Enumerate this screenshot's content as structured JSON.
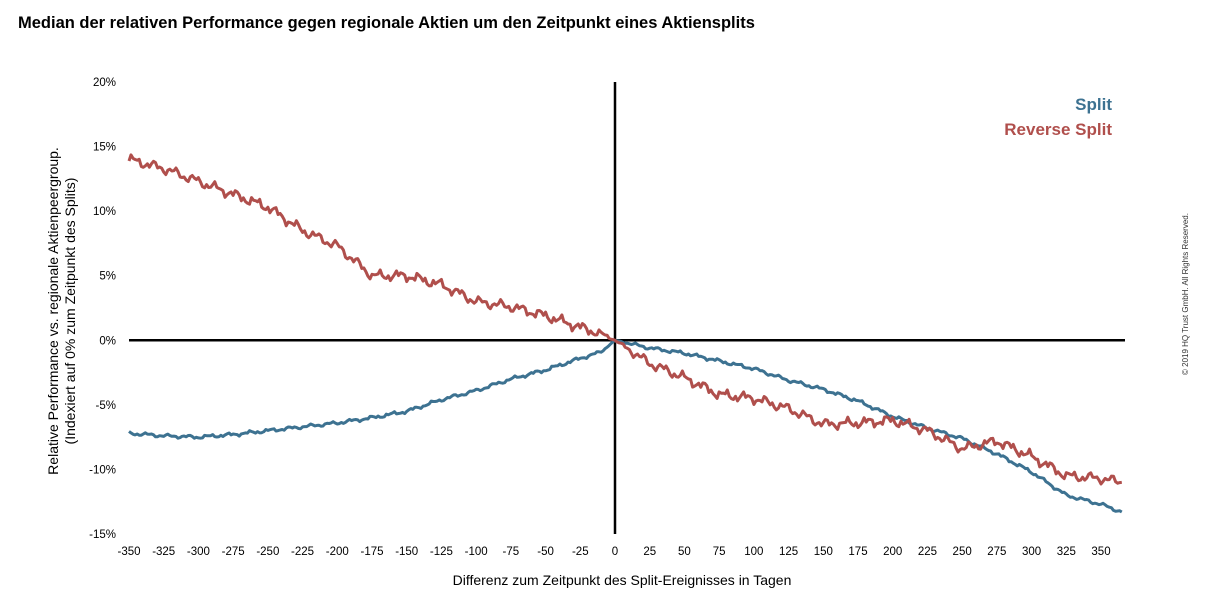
{
  "chart_data": {
    "type": "line",
    "title": "Median der relativen Performance gegen regionale Aktien um den Zeitpunkt eines Aktiensplits",
    "xlabel": "Differenz zum Zeitpunkt des Split-Ereignisses in Tagen",
    "ylabel": [
      "Relative Performance vs. regionale Aktienpeergroup.",
      "(Indexiert auf 0% zum Zeitpunkt des Splits)"
    ],
    "xlim": [
      -350,
      365
    ],
    "ylim": [
      -15,
      20
    ],
    "x_ticks": [
      "-350",
      "-325",
      "-300",
      "-275",
      "-250",
      "-225",
      "-200",
      "-175",
      "-150",
      "-125",
      "-100",
      "-75",
      "-50",
      "-25",
      "0",
      "25",
      "50",
      "75",
      "100",
      "125",
      "150",
      "175",
      "200",
      "225",
      "250",
      "275",
      "300",
      "325",
      "350"
    ],
    "y_ticks": [
      "20%",
      "15%",
      "10%",
      "5%",
      "0%",
      "-5%",
      "-10%",
      "-15%"
    ],
    "grid": false,
    "legend": "top-right",
    "series": [
      {
        "name": "Split",
        "color": "#3d7291",
        "points": [
          [
            -350,
            -7.2
          ],
          [
            -325,
            -7.4
          ],
          [
            -300,
            -7.5
          ],
          [
            -275,
            -7.3
          ],
          [
            -250,
            -7.0
          ],
          [
            -225,
            -6.7
          ],
          [
            -200,
            -6.4
          ],
          [
            -175,
            -6.0
          ],
          [
            -150,
            -5.5
          ],
          [
            -125,
            -4.6
          ],
          [
            -100,
            -3.9
          ],
          [
            -75,
            -3.0
          ],
          [
            -50,
            -2.3
          ],
          [
            -25,
            -1.4
          ],
          [
            -10,
            -0.9
          ],
          [
            0,
            0
          ],
          [
            25,
            -0.6
          ],
          [
            50,
            -1.0
          ],
          [
            75,
            -1.6
          ],
          [
            100,
            -2.2
          ],
          [
            125,
            -3.1
          ],
          [
            150,
            -3.8
          ],
          [
            175,
            -4.7
          ],
          [
            200,
            -5.9
          ],
          [
            225,
            -6.8
          ],
          [
            250,
            -7.6
          ],
          [
            275,
            -8.8
          ],
          [
            300,
            -10.2
          ],
          [
            325,
            -12.0
          ],
          [
            350,
            -12.7
          ],
          [
            365,
            -13.3
          ]
        ]
      },
      {
        "name": "Reverse Split",
        "color": "#b04f4c",
        "points": [
          [
            -350,
            14.0
          ],
          [
            -325,
            13.3
          ],
          [
            -300,
            12.3
          ],
          [
            -275,
            11.3
          ],
          [
            -250,
            10.3
          ],
          [
            -225,
            8.5
          ],
          [
            -200,
            7.3
          ],
          [
            -175,
            5.0
          ],
          [
            -150,
            5.0
          ],
          [
            -125,
            4.3
          ],
          [
            -100,
            3.0
          ],
          [
            -75,
            2.6
          ],
          [
            -50,
            1.9
          ],
          [
            -25,
            1.0
          ],
          [
            -10,
            0.5
          ],
          [
            0,
            0
          ],
          [
            25,
            -1.8
          ],
          [
            50,
            -2.9
          ],
          [
            75,
            -4.2
          ],
          [
            100,
            -4.5
          ],
          [
            125,
            -5.3
          ],
          [
            150,
            -6.5
          ],
          [
            175,
            -6.4
          ],
          [
            200,
            -6.2
          ],
          [
            225,
            -7.0
          ],
          [
            250,
            -8.4
          ],
          [
            275,
            -7.8
          ],
          [
            300,
            -9.0
          ],
          [
            325,
            -10.5
          ],
          [
            350,
            -10.7
          ],
          [
            365,
            -11.0
          ]
        ]
      }
    ]
  },
  "copyright": "© 2019 HQ Trust GmbH. All Rights Reserved."
}
